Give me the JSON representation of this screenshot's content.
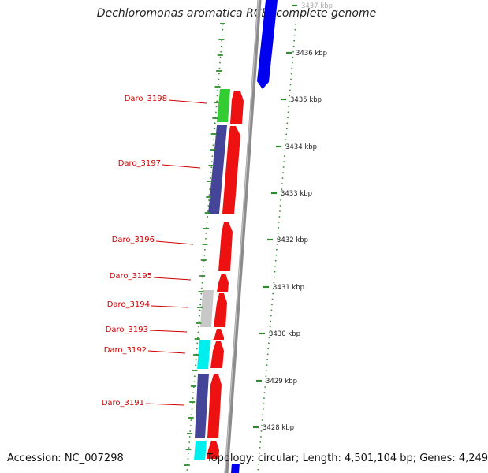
{
  "title": "Dechloromonas aromatica RCB, complete genome",
  "footer": {
    "accession": "Accession: NC_007298",
    "summary": "Topology: circular; Length: 4,501,104 bp; Genes: 4,249"
  },
  "colors": {
    "backbone": "#8c8c8c",
    "ticks": "#2e8b2e",
    "labels": "#cc0000",
    "cds_red": "#ee1111",
    "blue": "#0000ee",
    "green": "#33cc33",
    "purple": "#444499",
    "silver": "#c8c8c8",
    "cyan": "#00eeee"
  },
  "scale": {
    "unit": "kbp",
    "ticks": [
      {
        "label": "3437 kbp",
        "value": 3437
      },
      {
        "label": "3436 kbp",
        "value": 3436
      },
      {
        "label": "3435 kbp",
        "value": 3435
      },
      {
        "label": "3434 kbp",
        "value": 3434
      },
      {
        "label": "3433 kbp",
        "value": 3433
      },
      {
        "label": "3432 kbp",
        "value": 3432
      },
      {
        "label": "3431 kbp",
        "value": 3431
      },
      {
        "label": "3430 kbp",
        "value": 3430
      },
      {
        "label": "3429 kbp",
        "value": 3429
      },
      {
        "label": "3428 kbp",
        "value": 3428
      }
    ]
  },
  "gene_labels": [
    "Daro_3198",
    "Daro_3197",
    "Daro_3196",
    "Daro_3195",
    "Daro_3194",
    "Daro_3193",
    "Daro_3192",
    "Daro_3191"
  ]
}
